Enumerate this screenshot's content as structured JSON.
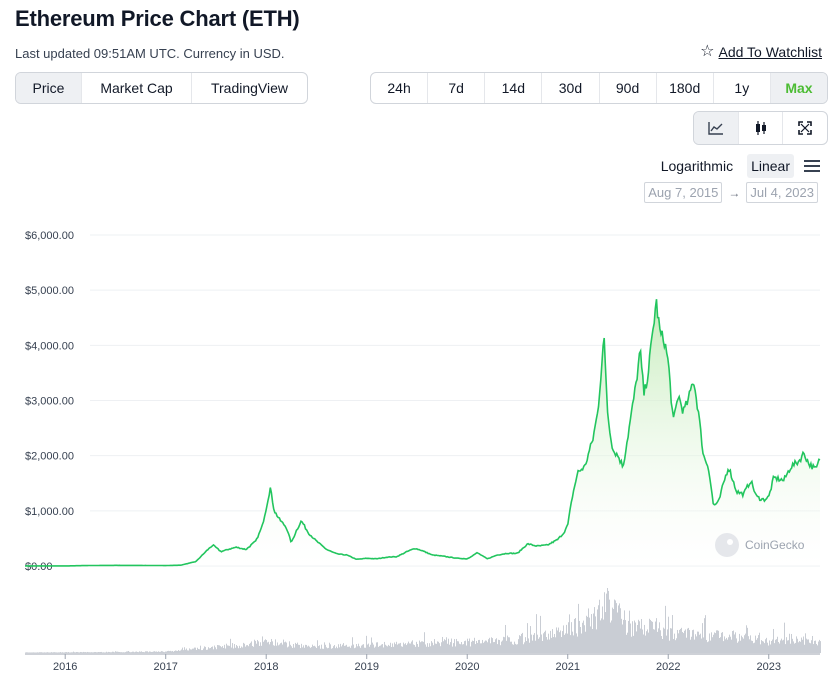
{
  "header": {
    "title": "Ethereum Price Chart (ETH)",
    "updated": "Last updated 09:51AM UTC. Currency in USD.",
    "watchlist_label": "Add To Watchlist"
  },
  "metric_tabs": [
    {
      "label": "Price",
      "active": true
    },
    {
      "label": "Market Cap",
      "active": false
    },
    {
      "label": "TradingView",
      "active": false
    }
  ],
  "range_tabs": [
    {
      "label": "24h"
    },
    {
      "label": "7d"
    },
    {
      "label": "14d"
    },
    {
      "label": "30d"
    },
    {
      "label": "90d"
    },
    {
      "label": "180d"
    },
    {
      "label": "1y"
    },
    {
      "label": "Max",
      "selected": true
    }
  ],
  "chart_type_buttons": [
    {
      "icon": "line-chart-icon",
      "active": true
    },
    {
      "icon": "candlestick-icon",
      "active": false
    },
    {
      "icon": "fullscreen-icon",
      "active": false
    }
  ],
  "scale": {
    "logarithmic_label": "Logarithmic",
    "linear_label": "Linear",
    "active": "Linear"
  },
  "date_range": {
    "from": "Aug 7, 2015",
    "to": "Jul 4, 2023"
  },
  "watermark": "CoinGecko",
  "colors": {
    "line": "#22c55e",
    "fill": "#dcf5d6",
    "volume": "#c9cdd4",
    "accent": "#4cbc33"
  },
  "chart_data": {
    "type": "area",
    "ylim": [
      0,
      6000
    ],
    "yticks": [
      {
        "value": 0,
        "label": "$0.00"
      },
      {
        "value": 1000,
        "label": "$1,000.00"
      },
      {
        "value": 2000,
        "label": "$2,000.00"
      },
      {
        "value": 3000,
        "label": "$3,000.00"
      },
      {
        "value": 4000,
        "label": "$4,000.00"
      },
      {
        "value": 5000,
        "label": "$5,000.00"
      },
      {
        "value": 6000,
        "label": "$6,000.00"
      }
    ],
    "xlim": [
      2015.6,
      2023.51
    ],
    "xticks": [
      {
        "value": 2016,
        "label": "2016"
      },
      {
        "value": 2017,
        "label": "2017"
      },
      {
        "value": 2018,
        "label": "2018"
      },
      {
        "value": 2019,
        "label": "2019"
      },
      {
        "value": 2020,
        "label": "2020"
      },
      {
        "value": 2021,
        "label": "2021"
      },
      {
        "value": 2022,
        "label": "2022"
      },
      {
        "value": 2023,
        "label": "2023"
      }
    ],
    "series": [
      {
        "points": [
          [
            2015.6,
            2
          ],
          [
            2016.0,
            1
          ],
          [
            2016.2,
            8
          ],
          [
            2016.5,
            12
          ],
          [
            2016.8,
            10
          ],
          [
            2017.0,
            8
          ],
          [
            2017.15,
            15
          ],
          [
            2017.3,
            80
          ],
          [
            2017.42,
            300
          ],
          [
            2017.47,
            380
          ],
          [
            2017.55,
            260
          ],
          [
            2017.62,
            300
          ],
          [
            2017.7,
            340
          ],
          [
            2017.8,
            300
          ],
          [
            2017.9,
            460
          ],
          [
            2017.96,
            720
          ],
          [
            2018.0,
            1050
          ],
          [
            2018.04,
            1420
          ],
          [
            2018.08,
            1000
          ],
          [
            2018.13,
            850
          ],
          [
            2018.2,
            700
          ],
          [
            2018.25,
            420
          ],
          [
            2018.3,
            640
          ],
          [
            2018.35,
            820
          ],
          [
            2018.42,
            600
          ],
          [
            2018.5,
            450
          ],
          [
            2018.6,
            300
          ],
          [
            2018.7,
            220
          ],
          [
            2018.8,
            200
          ],
          [
            2018.9,
            120
          ],
          [
            2019.0,
            140
          ],
          [
            2019.1,
            130
          ],
          [
            2019.2,
            160
          ],
          [
            2019.3,
            170
          ],
          [
            2019.4,
            260
          ],
          [
            2019.48,
            320
          ],
          [
            2019.55,
            280
          ],
          [
            2019.65,
            200
          ],
          [
            2019.75,
            180
          ],
          [
            2019.9,
            140
          ],
          [
            2020.0,
            130
          ],
          [
            2020.1,
            240
          ],
          [
            2020.2,
            130
          ],
          [
            2020.3,
            200
          ],
          [
            2020.4,
            230
          ],
          [
            2020.5,
            230
          ],
          [
            2020.6,
            400
          ],
          [
            2020.7,
            360
          ],
          [
            2020.8,
            380
          ],
          [
            2020.9,
            480
          ],
          [
            2020.96,
            600
          ],
          [
            2021.0,
            740
          ],
          [
            2021.05,
            1300
          ],
          [
            2021.1,
            1700
          ],
          [
            2021.17,
            1800
          ],
          [
            2021.25,
            2300
          ],
          [
            2021.3,
            2800
          ],
          [
            2021.36,
            4150
          ],
          [
            2021.4,
            2700
          ],
          [
            2021.45,
            2100
          ],
          [
            2021.5,
            2000
          ],
          [
            2021.55,
            1800
          ],
          [
            2021.62,
            2600
          ],
          [
            2021.68,
            3300
          ],
          [
            2021.72,
            3900
          ],
          [
            2021.76,
            3100
          ],
          [
            2021.8,
            3500
          ],
          [
            2021.85,
            4300
          ],
          [
            2021.88,
            4800
          ],
          [
            2021.92,
            4200
          ],
          [
            2021.96,
            4100
          ],
          [
            2022.0,
            3700
          ],
          [
            2022.05,
            2600
          ],
          [
            2022.1,
            3100
          ],
          [
            2022.15,
            2800
          ],
          [
            2022.2,
            3000
          ],
          [
            2022.25,
            3400
          ],
          [
            2022.3,
            2800
          ],
          [
            2022.35,
            2000
          ],
          [
            2022.4,
            1800
          ],
          [
            2022.45,
            1100
          ],
          [
            2022.5,
            1150
          ],
          [
            2022.55,
            1500
          ],
          [
            2022.6,
            1800
          ],
          [
            2022.68,
            1350
          ],
          [
            2022.75,
            1300
          ],
          [
            2022.82,
            1550
          ],
          [
            2022.88,
            1250
          ],
          [
            2022.95,
            1200
          ],
          [
            2023.0,
            1250
          ],
          [
            2023.05,
            1600
          ],
          [
            2023.15,
            1550
          ],
          [
            2023.22,
            1800
          ],
          [
            2023.3,
            1900
          ],
          [
            2023.35,
            2050
          ],
          [
            2023.4,
            1850
          ],
          [
            2023.47,
            1750
          ],
          [
            2023.51,
            1950
          ]
        ]
      }
    ],
    "volume": [
      [
        2015.6,
        0.01
      ],
      [
        2016.5,
        0.02
      ],
      [
        2017.0,
        0.03
      ],
      [
        2017.5,
        0.12
      ],
      [
        2018.0,
        0.22
      ],
      [
        2018.5,
        0.12
      ],
      [
        2019.0,
        0.15
      ],
      [
        2019.5,
        0.2
      ],
      [
        2020.0,
        0.22
      ],
      [
        2020.5,
        0.28
      ],
      [
        2021.0,
        0.45
      ],
      [
        2021.3,
        0.8
      ],
      [
        2021.4,
        1.0
      ],
      [
        2021.6,
        0.55
      ],
      [
        2021.9,
        0.5
      ],
      [
        2022.0,
        0.4
      ],
      [
        2022.5,
        0.35
      ],
      [
        2022.9,
        0.3
      ],
      [
        2023.0,
        0.25
      ],
      [
        2023.3,
        0.3
      ],
      [
        2023.51,
        0.22
      ]
    ]
  }
}
